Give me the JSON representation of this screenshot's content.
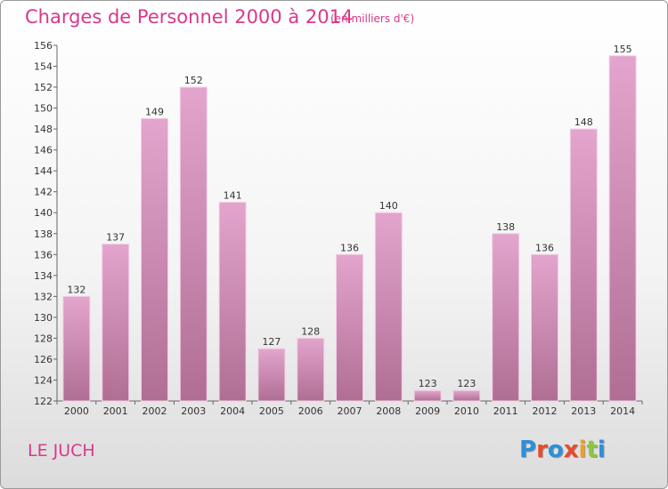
{
  "header": {
    "title": "Charges de Personnel 2000 à 2014",
    "subtitle": "(en milliers d'€)"
  },
  "footer": {
    "commune": "LE JUCH",
    "logo_text": "Proxiti",
    "logo_colors": [
      "#2e8fd6",
      "#e84a2e",
      "#2e8fd6",
      "#e84a2e",
      "#f0a020",
      "#8cc63f",
      "#2e8fd6"
    ]
  },
  "chart_data": {
    "type": "bar",
    "title": "Charges de Personnel 2000 à 2014",
    "subtitle": "(en milliers d'€)",
    "xlabel": "",
    "ylabel": "",
    "categories": [
      "2000",
      "2001",
      "2002",
      "2003",
      "2004",
      "2005",
      "2006",
      "2007",
      "2008",
      "2009",
      "2010",
      "2011",
      "2012",
      "2013",
      "2014"
    ],
    "values": [
      132,
      137,
      149,
      152,
      141,
      127,
      128,
      136,
      140,
      123,
      123,
      138,
      136,
      148,
      155
    ],
    "ylim": [
      122,
      156
    ],
    "yticks": [
      122,
      124,
      126,
      128,
      130,
      132,
      134,
      136,
      138,
      140,
      142,
      144,
      146,
      148,
      150,
      152,
      154,
      156
    ],
    "grid": false,
    "legend": "none",
    "bar_color_top": "#e3a5cd",
    "bar_color_bottom": "#b06e94"
  }
}
